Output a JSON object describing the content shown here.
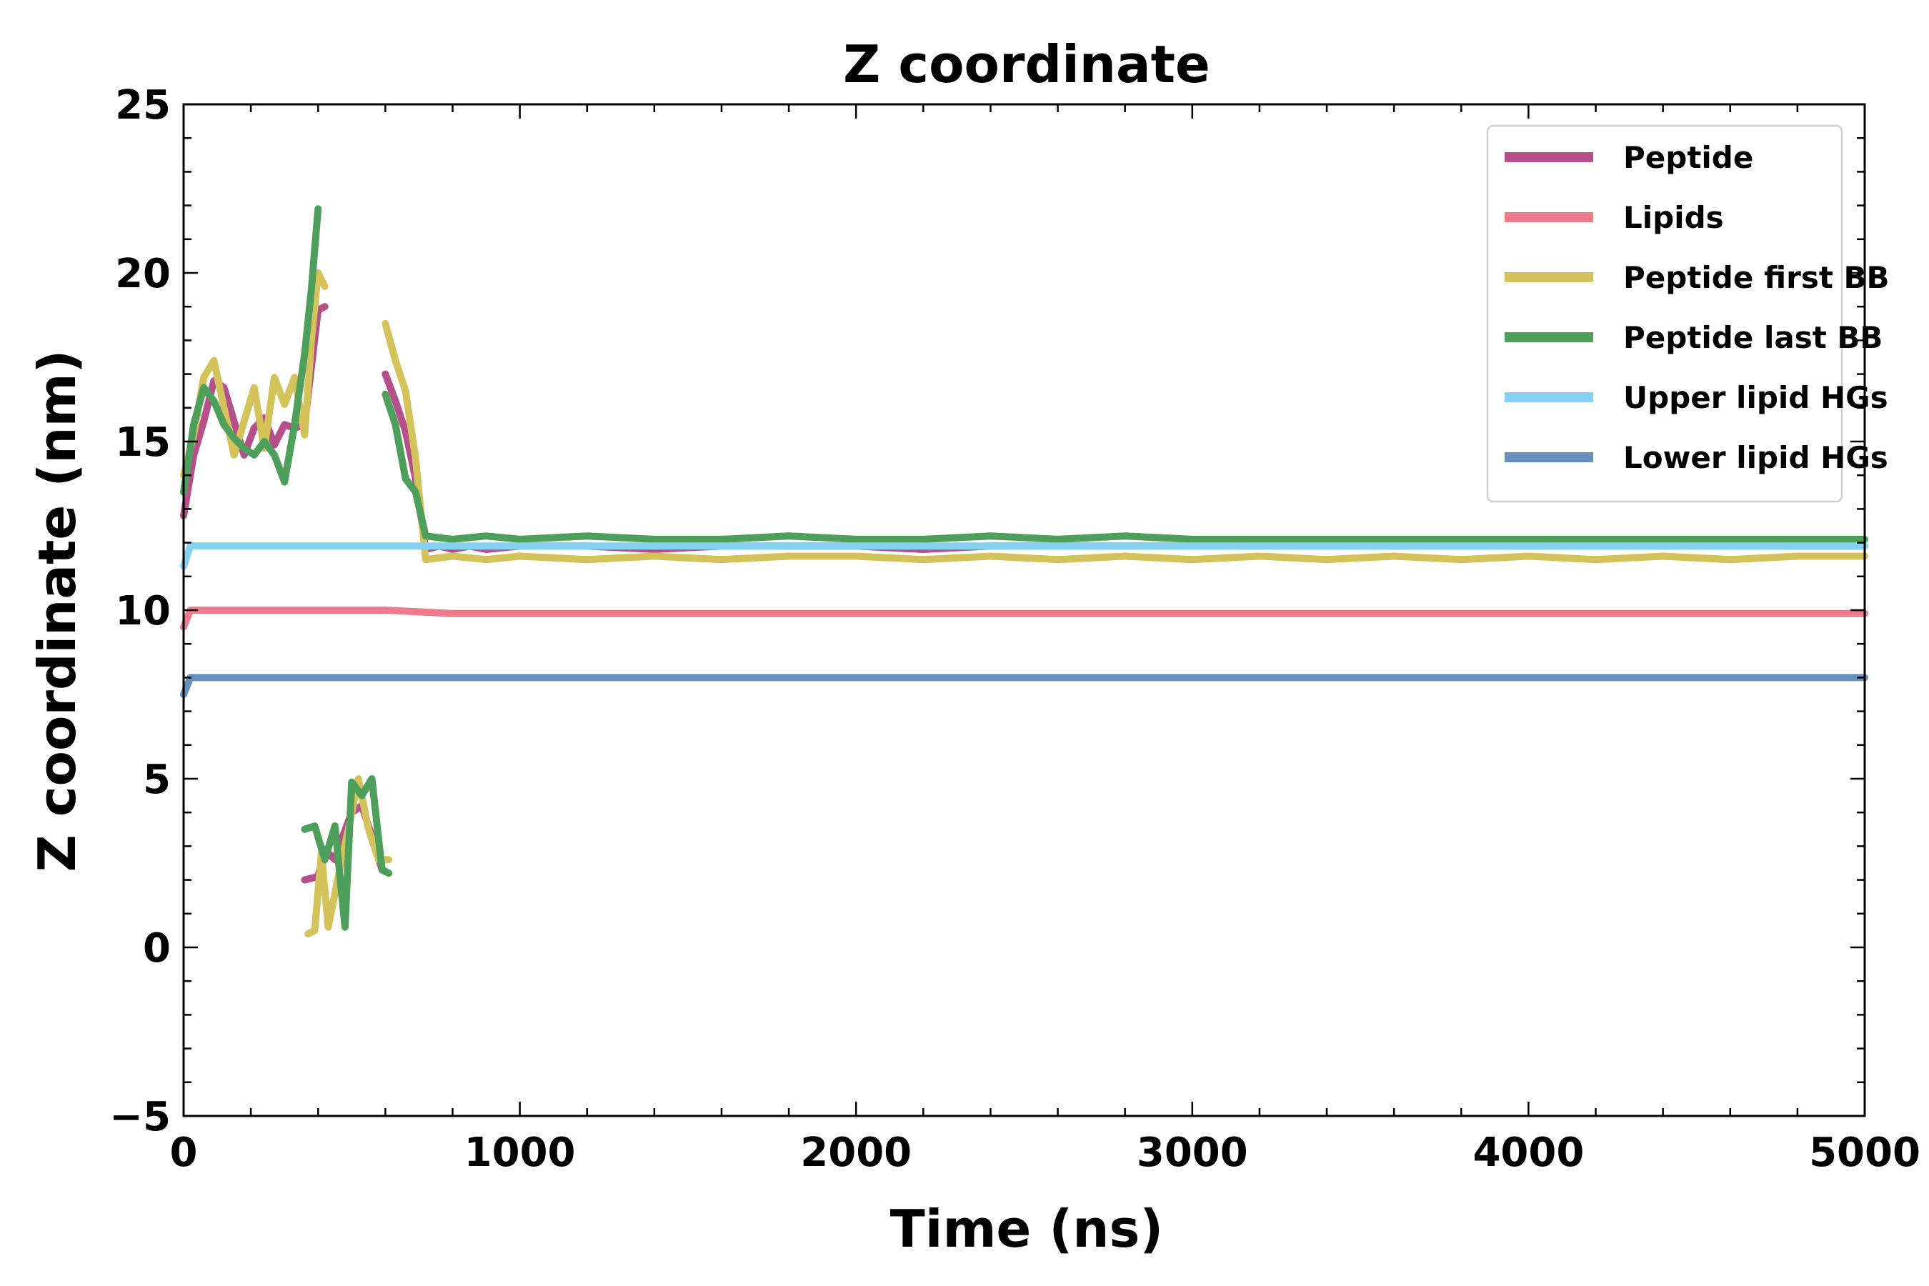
{
  "chart_data": {
    "type": "line",
    "title": "Z coordinate",
    "xlabel": "Time (ns)",
    "ylabel": "Z coordinate (nm)",
    "xlim": [
      0,
      5000
    ],
    "ylim": [
      -5,
      25
    ],
    "x_ticks": [
      0,
      1000,
      2000,
      3000,
      4000,
      5000
    ],
    "x_tick_labels": [
      "0",
      "1000",
      "2000",
      "3000",
      "4000",
      "5000"
    ],
    "y_ticks": [
      -5,
      0,
      5,
      10,
      15,
      20,
      25
    ],
    "y_tick_labels": [
      "−5",
      "0",
      "5",
      "10",
      "15",
      "20",
      "25"
    ],
    "grid": false,
    "legend_position": "top-right",
    "series": [
      {
        "name": "Peptide",
        "color": "#B5508A",
        "segments": [
          [
            [
              0,
              12.8
            ],
            [
              30,
              14.6
            ],
            [
              60,
              15.6
            ],
            [
              90,
              16.8
            ],
            [
              120,
              16.6
            ],
            [
              150,
              15.6
            ],
            [
              180,
              14.6
            ],
            [
              210,
              15.4
            ],
            [
              240,
              15.7
            ],
            [
              270,
              14.9
            ],
            [
              300,
              15.5
            ],
            [
              330,
              15.4
            ],
            [
              360,
              15.5
            ],
            [
              380,
              17.2
            ],
            [
              400,
              18.9
            ],
            [
              420,
              19.0
            ]
          ],
          [
            [
              600,
              17.0
            ],
            [
              630,
              16.2
            ],
            [
              660,
              15.3
            ],
            [
              690,
              13.9
            ],
            [
              720,
              11.8
            ],
            [
              760,
              11.9
            ],
            [
              800,
              11.8
            ],
            [
              850,
              11.9
            ],
            [
              900,
              11.8
            ],
            [
              1000,
              11.9
            ],
            [
              1200,
              11.9
            ],
            [
              1400,
              11.8
            ],
            [
              1600,
              11.9
            ],
            [
              1800,
              11.9
            ],
            [
              2000,
              11.9
            ],
            [
              2200,
              11.8
            ],
            [
              2400,
              11.9
            ],
            [
              2600,
              11.9
            ],
            [
              2800,
              11.9
            ],
            [
              3000,
              11.9
            ],
            [
              3200,
              11.9
            ],
            [
              3400,
              11.9
            ],
            [
              3600,
              11.9
            ],
            [
              3800,
              11.9
            ],
            [
              4000,
              11.9
            ],
            [
              4200,
              11.9
            ],
            [
              4400,
              11.9
            ],
            [
              4600,
              11.9
            ],
            [
              4800,
              11.9
            ],
            [
              5000,
              11.9
            ]
          ],
          [
            [
              360,
              2.0
            ],
            [
              400,
              2.1
            ],
            [
              420,
              2.9
            ],
            [
              450,
              2.6
            ],
            [
              470,
              3.2
            ],
            [
              500,
              4.0
            ],
            [
              530,
              4.2
            ],
            [
              560,
              3.3
            ],
            [
              590,
              2.3
            ],
            [
              610,
              2.2
            ]
          ]
        ]
      },
      {
        "name": "Lipids",
        "color": "#EE7B8C",
        "segments": [
          [
            [
              0,
              9.5
            ],
            [
              20,
              10.0
            ],
            [
              200,
              10.0
            ],
            [
              400,
              10.0
            ],
            [
              600,
              10.0
            ],
            [
              800,
              9.9
            ],
            [
              1000,
              9.9
            ],
            [
              1500,
              9.9
            ],
            [
              2000,
              9.9
            ],
            [
              2500,
              9.9
            ],
            [
              3000,
              9.9
            ],
            [
              3500,
              9.9
            ],
            [
              4000,
              9.9
            ],
            [
              4500,
              9.9
            ],
            [
              5000,
              9.9
            ]
          ]
        ]
      },
      {
        "name": "Peptide first BB",
        "color": "#D4C35B",
        "segments": [
          [
            [
              0,
              14.0
            ],
            [
              30,
              15.2
            ],
            [
              60,
              16.9
            ],
            [
              90,
              17.4
            ],
            [
              120,
              16.0
            ],
            [
              150,
              14.6
            ],
            [
              180,
              15.6
            ],
            [
              210,
              16.6
            ],
            [
              240,
              14.8
            ],
            [
              270,
              16.9
            ],
            [
              300,
              16.1
            ],
            [
              330,
              16.9
            ],
            [
              360,
              15.2
            ],
            [
              380,
              18.0
            ],
            [
              400,
              20.0
            ],
            [
              420,
              19.6
            ]
          ],
          [
            [
              600,
              18.5
            ],
            [
              630,
              17.4
            ],
            [
              660,
              16.5
            ],
            [
              690,
              14.5
            ],
            [
              720,
              11.5
            ],
            [
              800,
              11.6
            ],
            [
              900,
              11.5
            ],
            [
              1000,
              11.6
            ],
            [
              1200,
              11.5
            ],
            [
              1400,
              11.6
            ],
            [
              1600,
              11.5
            ],
            [
              1800,
              11.6
            ],
            [
              2000,
              11.6
            ],
            [
              2200,
              11.5
            ],
            [
              2400,
              11.6
            ],
            [
              2600,
              11.5
            ],
            [
              2800,
              11.6
            ],
            [
              3000,
              11.5
            ],
            [
              3200,
              11.6
            ],
            [
              3400,
              11.5
            ],
            [
              3600,
              11.6
            ],
            [
              3800,
              11.5
            ],
            [
              4000,
              11.6
            ],
            [
              4200,
              11.5
            ],
            [
              4400,
              11.6
            ],
            [
              4600,
              11.5
            ],
            [
              4800,
              11.6
            ],
            [
              5000,
              11.6
            ]
          ],
          [
            [
              370,
              0.4
            ],
            [
              390,
              0.5
            ],
            [
              410,
              2.8
            ],
            [
              430,
              0.6
            ],
            [
              460,
              2.1
            ],
            [
              490,
              3.5
            ],
            [
              520,
              5.0
            ],
            [
              550,
              3.5
            ],
            [
              580,
              2.6
            ],
            [
              610,
              2.6
            ]
          ]
        ]
      },
      {
        "name": "Peptide last BB",
        "color": "#4E9E5C",
        "segments": [
          [
            [
              0,
              13.5
            ],
            [
              30,
              15.5
            ],
            [
              60,
              16.6
            ],
            [
              90,
              16.2
            ],
            [
              120,
              15.5
            ],
            [
              150,
              15.1
            ],
            [
              180,
              14.8
            ],
            [
              210,
              14.6
            ],
            [
              240,
              15.0
            ],
            [
              270,
              14.6
            ],
            [
              300,
              13.8
            ],
            [
              330,
              15.5
            ],
            [
              360,
              17.6
            ],
            [
              380,
              19.5
            ],
            [
              400,
              21.9
            ]
          ],
          [
            [
              600,
              16.4
            ],
            [
              630,
              15.5
            ],
            [
              660,
              13.9
            ],
            [
              690,
              13.5
            ],
            [
              720,
              12.2
            ],
            [
              800,
              12.1
            ],
            [
              900,
              12.2
            ],
            [
              1000,
              12.1
            ],
            [
              1200,
              12.2
            ],
            [
              1400,
              12.1
            ],
            [
              1600,
              12.1
            ],
            [
              1800,
              12.2
            ],
            [
              2000,
              12.1
            ],
            [
              2200,
              12.1
            ],
            [
              2400,
              12.2
            ],
            [
              2600,
              12.1
            ],
            [
              2800,
              12.2
            ],
            [
              3000,
              12.1
            ],
            [
              3200,
              12.1
            ],
            [
              3400,
              12.1
            ],
            [
              3600,
              12.1
            ],
            [
              3800,
              12.1
            ],
            [
              4000,
              12.1
            ],
            [
              4200,
              12.1
            ],
            [
              4400,
              12.1
            ],
            [
              4600,
              12.1
            ],
            [
              4800,
              12.1
            ],
            [
              5000,
              12.1
            ]
          ],
          [
            [
              360,
              3.5
            ],
            [
              390,
              3.6
            ],
            [
              420,
              2.6
            ],
            [
              450,
              3.6
            ],
            [
              480,
              0.6
            ],
            [
              500,
              4.9
            ],
            [
              530,
              4.5
            ],
            [
              560,
              5.0
            ],
            [
              590,
              2.3
            ],
            [
              610,
              2.2
            ]
          ]
        ]
      },
      {
        "name": "Upper lipid HGs",
        "color": "#86D1F0",
        "segments": [
          [
            [
              0,
              11.3
            ],
            [
              20,
              11.9
            ],
            [
              200,
              11.9
            ],
            [
              400,
              11.9
            ],
            [
              600,
              11.9
            ],
            [
              700,
              11.9
            ],
            [
              800,
              11.9
            ],
            [
              1000,
              11.9
            ],
            [
              1500,
              11.9
            ],
            [
              2000,
              11.9
            ],
            [
              2500,
              11.9
            ],
            [
              3000,
              11.9
            ],
            [
              3500,
              11.9
            ],
            [
              4000,
              11.9
            ],
            [
              4500,
              11.9
            ],
            [
              5000,
              11.9
            ]
          ]
        ]
      },
      {
        "name": "Lower lipid HGs",
        "color": "#6791BC",
        "segments": [
          [
            [
              0,
              7.5
            ],
            [
              20,
              8.0
            ],
            [
              200,
              8.0
            ],
            [
              400,
              8.0
            ],
            [
              600,
              8.0
            ],
            [
              800,
              8.0
            ],
            [
              1000,
              8.0
            ],
            [
              1500,
              8.0
            ],
            [
              2000,
              8.0
            ],
            [
              2500,
              8.0
            ],
            [
              3000,
              8.0
            ],
            [
              3500,
              8.0
            ],
            [
              4000,
              8.0
            ],
            [
              4500,
              8.0
            ],
            [
              5000,
              8.0
            ]
          ]
        ]
      }
    ]
  }
}
